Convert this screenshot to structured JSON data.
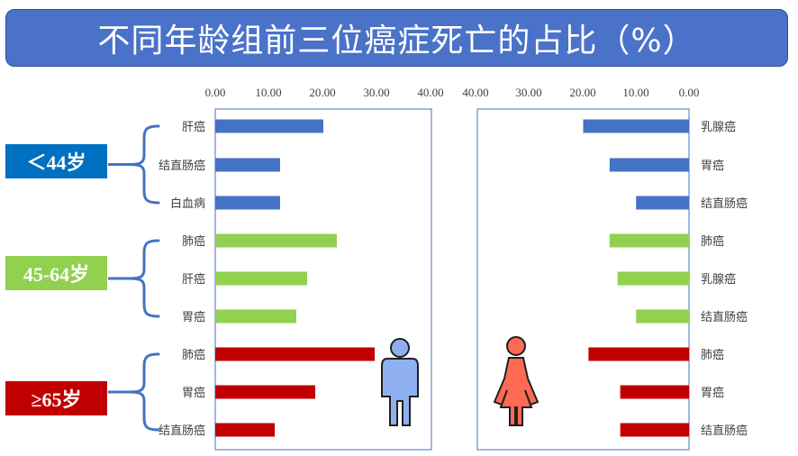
{
  "title": "不同年龄组前三位癌症死亡的占比（%）",
  "colors": {
    "title_bg": "#4a72c8",
    "group_colors": [
      "#4472c4",
      "#92d050",
      "#c00000"
    ],
    "age_box_colors": [
      "#0070c0",
      "#92d050",
      "#c00000"
    ],
    "male_icon": "#8fb0f0",
    "female_icon": "#ff6a55",
    "bracket": "#4472c4"
  },
  "age_groups": [
    {
      "label": "＜44岁"
    },
    {
      "label": "45-64岁"
    },
    {
      "label": "≥65岁"
    }
  ],
  "icons": {
    "male": "male-person-icon",
    "female": "female-person-icon"
  },
  "chart_data": [
    {
      "type": "bar",
      "orientation": "horizontal",
      "panel": "male",
      "xlim": [
        0,
        40
      ],
      "ticks": [
        "0.00",
        "10.00",
        "20.00",
        "30.00",
        "40.00"
      ],
      "categories": [
        "肝癌",
        "结直肠癌",
        "白血病",
        "肺癌",
        "肝癌",
        "胃癌",
        "肺癌",
        "胃癌",
        "结直肠癌"
      ],
      "values": [
        20.0,
        12.0,
        12.0,
        22.5,
        17.0,
        15.0,
        29.5,
        18.5,
        11.0
      ],
      "groups": [
        0,
        0,
        0,
        1,
        1,
        1,
        2,
        2,
        2
      ],
      "grid": false
    },
    {
      "type": "bar",
      "orientation": "horizontal",
      "panel": "female",
      "xlim": [
        0,
        40
      ],
      "x_reversed": true,
      "ticks": [
        "40.00",
        "30.00",
        "20.00",
        "10.00",
        "0.00"
      ],
      "categories": [
        "乳腺癌",
        "胃癌",
        "结直肠癌",
        "肺癌",
        "乳腺癌",
        "结直肠癌",
        "肺癌",
        "胃癌",
        "结直肠癌"
      ],
      "values": [
        20.0,
        15.0,
        10.0,
        15.0,
        13.5,
        10.0,
        19.0,
        13.0,
        13.0
      ],
      "groups": [
        0,
        0,
        0,
        1,
        1,
        1,
        2,
        2,
        2
      ],
      "grid": false
    }
  ]
}
